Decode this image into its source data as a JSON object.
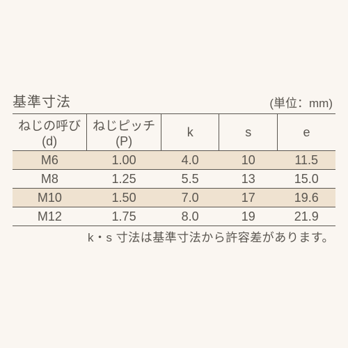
{
  "title": "基準寸法",
  "unit_label": "(単位：mm)",
  "note": "k・s 寸法は基準寸法から許容差があります。",
  "table": {
    "columns": [
      "ねじの呼び(d)",
      "ねじピッチ(P)",
      "k",
      "s",
      "e"
    ],
    "col_widths_pct": [
      23,
      23,
      18,
      18,
      18
    ],
    "rows": [
      [
        "M6",
        "1.00",
        "4.0",
        "10",
        "11.5"
      ],
      [
        "M8",
        "1.25",
        "5.5",
        "13",
        "15.0"
      ],
      [
        "M10",
        "1.50",
        "7.0",
        "17",
        "19.6"
      ],
      [
        "M12",
        "1.75",
        "8.0",
        "19",
        "21.9"
      ]
    ],
    "header_border_color": "#5a5650",
    "row_border_color": "#5a5650",
    "stripe_colors": [
      "#efe2d0",
      "#faf6f1"
    ],
    "background_color": "#faf6f1",
    "text_color": "#5a5650",
    "header_fontsize": 18,
    "cell_fontsize": 18,
    "title_fontsize": 20,
    "unit_fontsize": 17,
    "note_fontsize": 17
  }
}
